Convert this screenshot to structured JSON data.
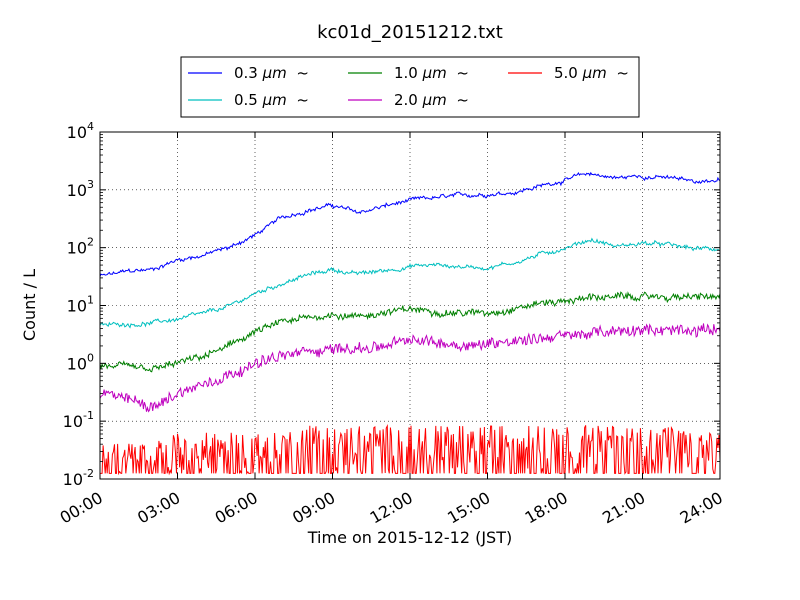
{
  "chart_data": {
    "type": "line",
    "title": "kc01d_20151212.txt",
    "xlabel": "Time on 2015-12-12 (JST)",
    "ylabel": "Count / L",
    "yscale": "log",
    "ylim": [
      0.01,
      10000
    ],
    "xlim": [
      "2015-12-12 00:00",
      "2015-12-13 00:00"
    ],
    "grid": true,
    "legend_placement": "top",
    "x_tick_labels": [
      "00:00",
      "03:00",
      "06:00",
      "09:00",
      "12:00",
      "15:00",
      "18:00",
      "21:00",
      "24:00"
    ],
    "y_ticks": [
      {
        "base": "10",
        "exp": "-2"
      },
      {
        "base": "10",
        "exp": "-1"
      },
      {
        "base": "10",
        "exp": "0"
      },
      {
        "base": "10",
        "exp": "1"
      },
      {
        "base": "10",
        "exp": "2"
      },
      {
        "base": "10",
        "exp": "3"
      },
      {
        "base": "10",
        "exp": "4"
      }
    ],
    "x_times": [
      "00:00",
      "01:00",
      "02:00",
      "03:00",
      "04:00",
      "05:00",
      "06:00",
      "07:00",
      "08:00",
      "09:00",
      "10:00",
      "11:00",
      "12:00",
      "13:00",
      "14:00",
      "15:00",
      "16:00",
      "17:00",
      "18:00",
      "19:00",
      "20:00",
      "21:00",
      "22:00",
      "23:00",
      "24:00"
    ],
    "series": [
      {
        "name": "0.3 μm ~",
        "legend_main": "0.3 ",
        "legend_unit": "μm",
        "legend_tail": "~",
        "color": "#0000ff",
        "values": [
          32,
          38,
          42,
          62,
          75,
          100,
          165,
          320,
          450,
          540,
          400,
          520,
          640,
          720,
          780,
          860,
          920,
          1150,
          1500,
          1900,
          1600,
          1750,
          1600,
          1400,
          1500
        ]
      },
      {
        "name": "0.5 μm ~",
        "legend_main": "0.5 ",
        "legend_unit": "μm",
        "legend_tail": "~",
        "color": "#00bfbf",
        "values": [
          4.5,
          4.8,
          5.0,
          5.8,
          7.0,
          9.5,
          16,
          24,
          33,
          42,
          35,
          40,
          48,
          50,
          47,
          46,
          55,
          75,
          100,
          140,
          105,
          120,
          110,
          95,
          95
        ]
      },
      {
        "name": "1.0 μm ~",
        "legend_main": "1.0 ",
        "legend_unit": "μm",
        "legend_tail": "~",
        "color": "#008000",
        "values": [
          0.9,
          0.85,
          0.75,
          1.0,
          1.3,
          2.0,
          3.5,
          5.0,
          6.0,
          7.0,
          6.5,
          7.5,
          8.5,
          8.0,
          7.5,
          7.5,
          9.0,
          11,
          12,
          14,
          14,
          14,
          14,
          14,
          14
        ]
      },
      {
        "name": "2.0 μm ~",
        "legend_main": "2.0 ",
        "legend_unit": "μm",
        "legend_tail": "~",
        "color": "#bf00bf",
        "values": [
          0.3,
          0.25,
          0.18,
          0.3,
          0.45,
          0.65,
          1.0,
          1.3,
          1.6,
          1.8,
          1.8,
          2.0,
          2.5,
          2.3,
          2.1,
          2.2,
          2.5,
          2.8,
          3.0,
          3.3,
          3.5,
          3.7,
          3.8,
          3.8,
          4.0
        ]
      },
      {
        "name": "5.0 μm ~",
        "legend_main": "5.0 ",
        "legend_unit": "μm",
        "legend_tail": "~",
        "color": "#ff0000",
        "values": [
          0.02,
          0.02,
          0.02,
          0.03,
          0.03,
          0.03,
          0.03,
          0.03,
          0.04,
          0.04,
          0.04,
          0.04,
          0.04,
          0.04,
          0.04,
          0.04,
          0.04,
          0.04,
          0.05,
          0.04,
          0.04,
          0.04,
          0.04,
          0.03,
          0.03
        ],
        "min_value": 0.0125,
        "peak_value": 0.125
      }
    ]
  }
}
